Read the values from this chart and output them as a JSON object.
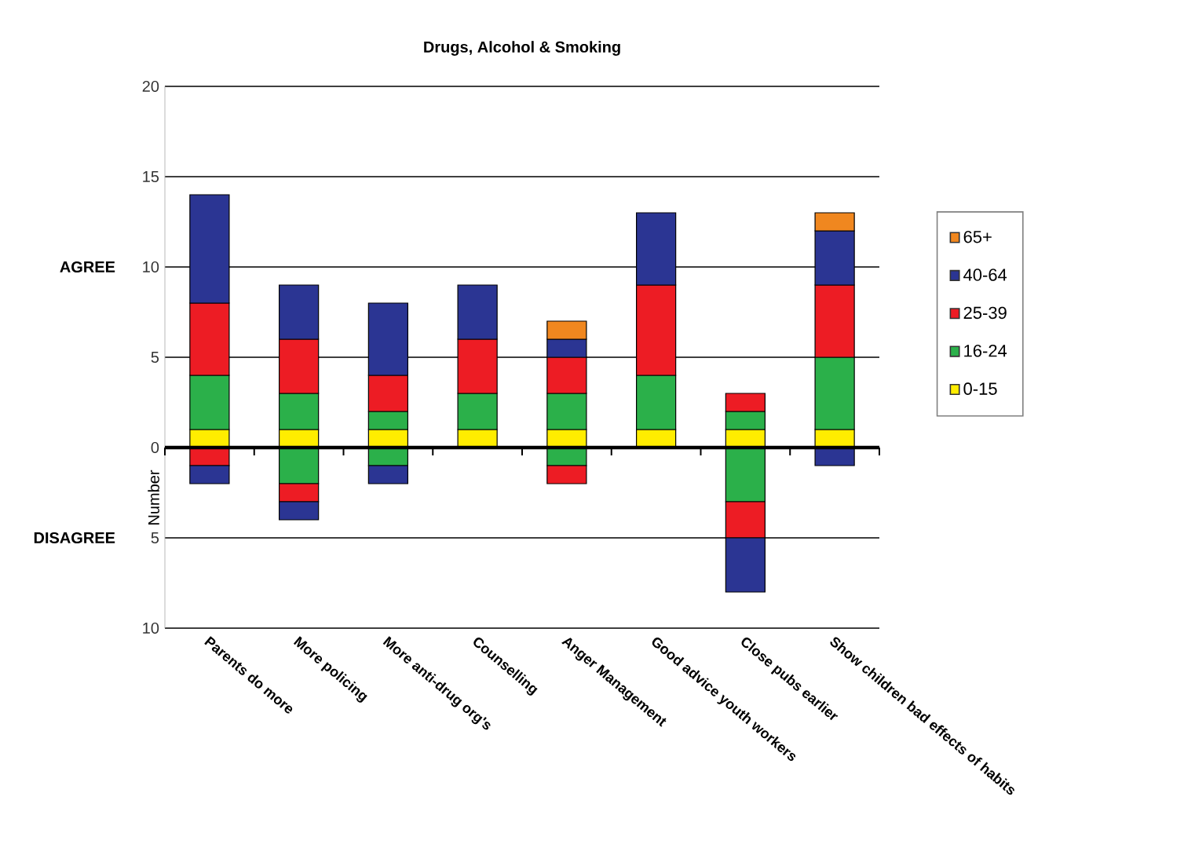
{
  "chart_data": {
    "type": "bar",
    "title": "Drugs, Alcohol & Smoking",
    "ylabel": "Number",
    "annotations": [
      "AGREE",
      "DISAGREE"
    ],
    "categories": [
      "Parents do more",
      "More policing",
      "More anti-drug org's",
      "Counselling",
      "Anger Management",
      "Good advice youth workers",
      "Close pubs earlier",
      "Show children bad effects of habits"
    ],
    "stacked": true,
    "series": [
      {
        "name": "0-15",
        "color": "#ffed00",
        "values": [
          1,
          1,
          1,
          1,
          1,
          1,
          1,
          1
        ]
      },
      {
        "name": "16-24",
        "color": "#2bb04a",
        "values": [
          3,
          2,
          1,
          2,
          2,
          3,
          1,
          4
        ]
      },
      {
        "name": "25-39",
        "color": "#ed1c24",
        "values": [
          4,
          3,
          2,
          3,
          2,
          5,
          1,
          4
        ]
      },
      {
        "name": "40-64",
        "color": "#2b3593",
        "values": [
          6,
          3,
          4,
          3,
          1,
          4,
          null,
          3
        ]
      },
      {
        "name": "65+",
        "color": "#f0871f",
        "values": [
          null,
          null,
          null,
          null,
          1,
          null,
          null,
          1
        ]
      },
      {
        "color": "#2bb04a",
        "values": [
          null,
          -2,
          -1,
          null,
          -1,
          null,
          -3,
          null
        ]
      },
      {
        "color": "#ed1c24",
        "values": [
          -1,
          -1,
          null,
          null,
          -1,
          null,
          -2,
          null
        ]
      },
      {
        "color": "#2b3593",
        "values": [
          -1,
          -1,
          -1,
          null,
          null,
          null,
          -3,
          -1
        ]
      }
    ],
    "ylim": [
      -10,
      20
    ],
    "yticks": [
      {
        "value": -10,
        "label": "10"
      },
      {
        "value": -5,
        "label": "5"
      },
      0,
      5,
      10,
      15,
      20
    ],
    "grid": "y",
    "legend": "right"
  }
}
